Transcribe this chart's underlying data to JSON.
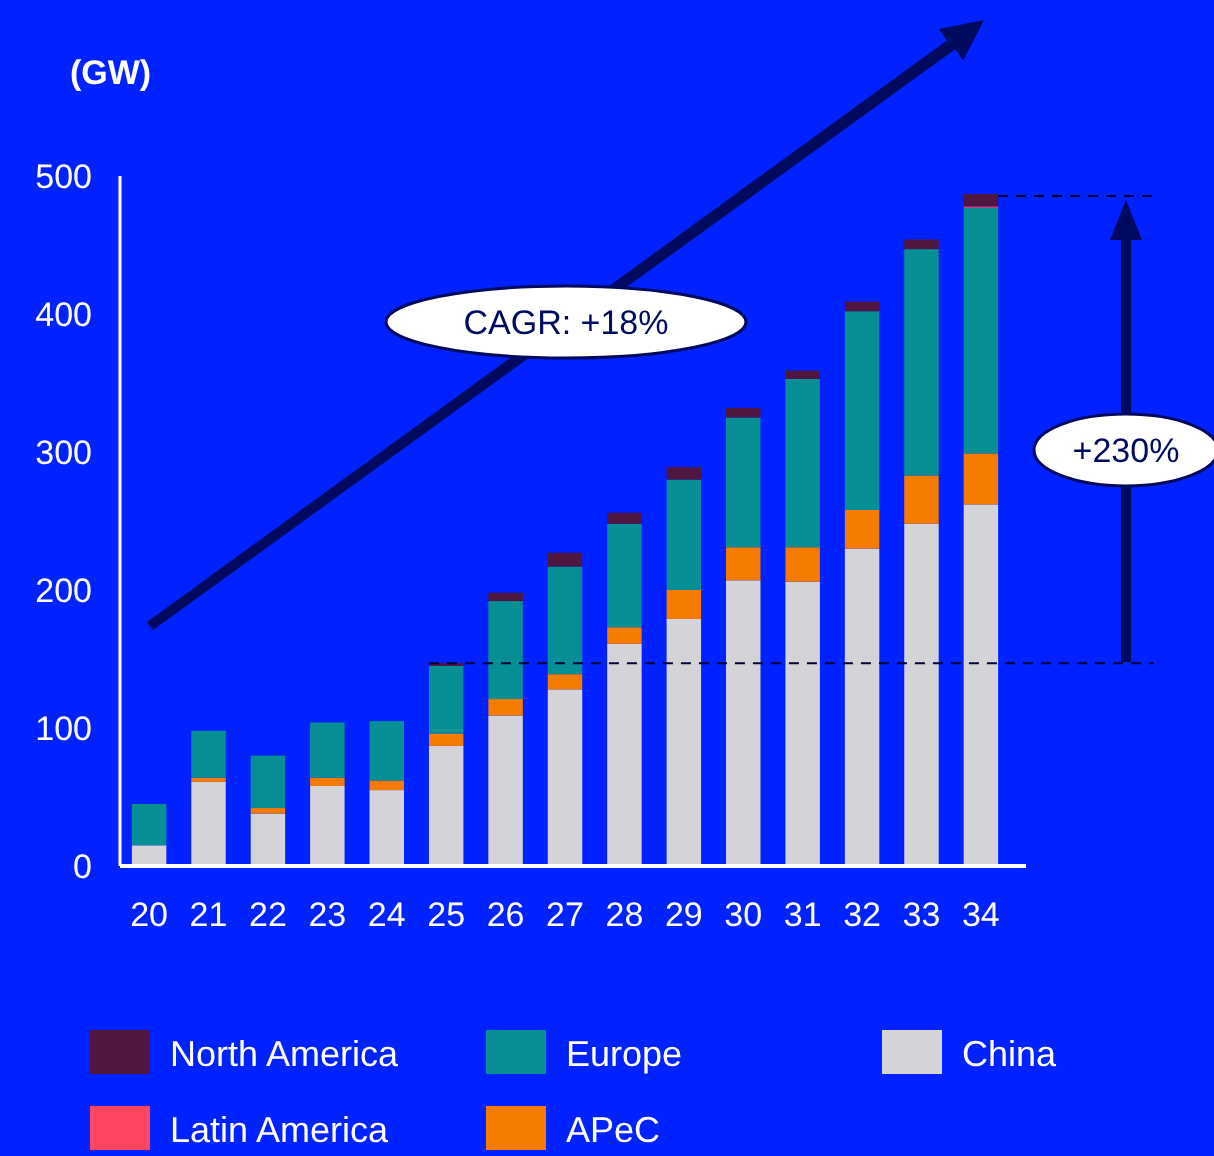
{
  "chart_data": {
    "type": "bar",
    "stacked": true,
    "ylabel": "(GW)",
    "categories": [
      "20",
      "21",
      "22",
      "23",
      "24",
      "25",
      "26",
      "27",
      "28",
      "29",
      "30",
      "31",
      "32",
      "33",
      "34"
    ],
    "series": [
      {
        "name": "China",
        "color": "#d4d4d8",
        "values": [
          15,
          61,
          38,
          58,
          55,
          87,
          109,
          128,
          161,
          179,
          207,
          206,
          230,
          248,
          262
        ]
      },
      {
        "name": "APeC",
        "color": "#f57c00",
        "values": [
          0,
          3,
          4,
          6,
          7,
          9,
          12,
          11,
          12,
          21,
          24,
          25,
          28,
          35,
          37
        ]
      },
      {
        "name": "Europe",
        "color": "#068f94",
        "values": [
          30,
          34,
          38,
          40,
          43,
          49,
          71,
          78,
          75,
          80,
          94,
          122,
          144,
          164,
          178
        ]
      },
      {
        "name": "Latin America",
        "color": "#ff4560",
        "values": [
          0,
          0,
          0,
          0,
          0,
          0,
          0,
          0,
          0,
          0,
          0,
          0,
          0,
          0,
          1
        ]
      },
      {
        "name": "North America",
        "color": "#4f1740",
        "values": [
          0,
          0,
          0,
          0,
          0,
          2,
          6,
          10,
          8,
          9,
          7,
          6,
          7,
          7,
          9
        ]
      }
    ],
    "ylim": [
      0,
      500
    ],
    "yticks": [
      0,
      100,
      200,
      300,
      400,
      500
    ],
    "grid": false,
    "legend": "bottom",
    "ref_lines": [
      {
        "axis": "y",
        "value": 147,
        "color": "#000033",
        "line_style": "dashed"
      }
    ],
    "annotations": [
      "CAGR: +18%",
      "+230%"
    ]
  }
}
